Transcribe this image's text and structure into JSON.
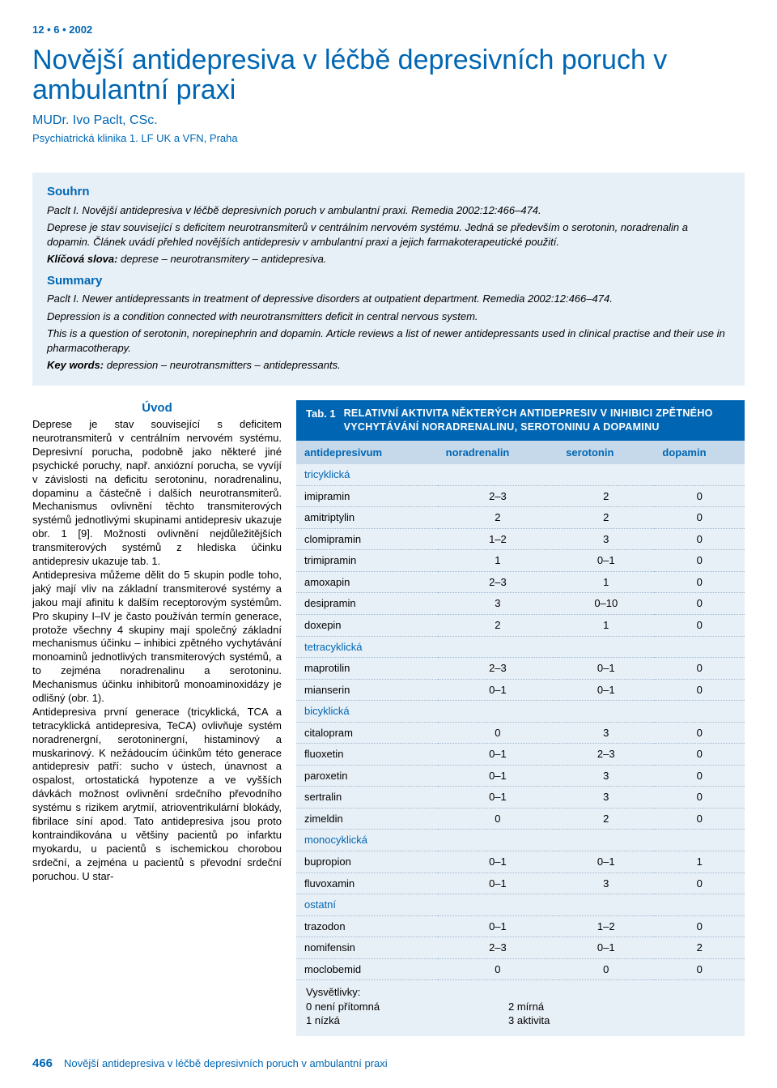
{
  "issue": "12 • 6 • 2002",
  "title": "Novější antidepresiva v léčbě depresivních poruch v ambulantní praxi",
  "author": "MUDr. Ivo Paclt, CSc.",
  "affiliation": "Psychiatrická klinika 1. LF UK a VFN, Praha",
  "souhrn": {
    "heading": "Souhrn",
    "p1": "Paclt I. Novější antidepresiva v léčbě depresivních poruch v ambulantní praxi. Remedia 2002:12:466–474.",
    "p2": "Deprese je stav související s deficitem neurotransmiterů v centrálním nervovém systému. Jedná se především o serotonin, noradrenalin a dopamin. Článek uvádí přehled novějších antidepresiv v ambulantní praxi a jejich farmakoterapeutické použití.",
    "kw_label": "Klíčová slova:",
    "kw": " deprese – neurotransmitery – antidepresiva."
  },
  "summary": {
    "heading": "Summary",
    "p1": "Paclt I. Newer antidepressants in treatment of depressive disorders at outpatient department. Remedia 2002:12:466–474.",
    "p2": "Depression is a condition connected with neurotransmitters deficit in central nervous system.",
    "p3": "This is a question of serotonin, norepinephrin and dopamin. Article reviews a list of newer antidepressants used in clinical practise and their use in pharmacotherapy.",
    "kw_label": "Key words:",
    "kw": " depression – neurotransmitters – antidepressants."
  },
  "uvod": {
    "heading": "Úvod",
    "text": "Deprese je stav související s deficitem neurotransmiterů v centrálním nervovém systému. Depresivní porucha, podobně jako některé jiné psychické poruchy, např. anxiózní porucha, se vyvíjí v závislosti na deficitu serotoninu, noradrenalinu, dopaminu a částečně i dalších neurotransmiterů. Mechanismus ovlivnění těchto transmiterových systémů jednotlivými skupinami antidepresiv ukazuje obr. 1 [9]. Možnosti ovlivnění nejdůležitějších transmiterových systémů z hlediska účinku antidepresiv ukazuje tab. 1.\nAntidepresiva můžeme dělit do 5 skupin podle toho, jaký mají vliv na základní transmiterové systémy a jakou mají afinitu k dalším receptorovým systémům. Pro skupiny I–IV je často používán termín generace, protože všechny 4 skupiny mají společný základní mechanismus účinku – inhibici zpětného vychytávání monoaminů jednotlivých transmiterových systémů, a to zejména noradrenalinu a serotoninu. Mechanismus účinku inhibitorů monoaminoxidázy je odlišný (obr. 1).\nAntidepresiva první generace (tricyklická, TCA a tetracyklická antidepresiva, TeCA) ovlivňuje systém noradrenergní, serotoninergní, histaminový a muskarinový. K nežádoucím účinkům této generace antidepresiv patří: sucho v ústech, únavnost a ospalost, ortostatická hypotenze a ve vyšších dávkách možnost ovlivnění srdečního převodního systému s rizikem arytmií, atrioventrikulární blokády, fibrilace síní apod. Tato antidepresiva jsou proto kontraindikována u většiny pacientů po infarktu myokardu, u pacientů s ischemickou chorobou srdeční, a zejména u pacientů s převodní srdeční poruchou. U star-"
  },
  "table": {
    "tab_label": "Tab. 1",
    "title": "RELATIVNÍ AKTIVITA NĚKTERÝCH ANTIDEPRESIV V INHIBICI ZPĚTNÉHO VYCHYTÁVÁNÍ NORADRENALINU, SEROTONINU A DOPAMINU",
    "columns": [
      "antidepresivum",
      "noradrenalin",
      "serotonin",
      "dopamin"
    ],
    "rows": [
      {
        "cat": "tricyklická"
      },
      {
        "name": "imipramin",
        "v": [
          "2–3",
          "2",
          "0"
        ]
      },
      {
        "name": "amitriptylin",
        "v": [
          "2",
          "2",
          "0"
        ]
      },
      {
        "name": "clomipramin",
        "v": [
          "1–2",
          "3",
          "0"
        ]
      },
      {
        "name": "trimipramin",
        "v": [
          "1",
          "0–1",
          "0"
        ]
      },
      {
        "name": "amoxapin",
        "v": [
          "2–3",
          "1",
          "0"
        ]
      },
      {
        "name": "desipramin",
        "v": [
          "3",
          "0–10",
          "0"
        ]
      },
      {
        "name": "doxepin",
        "v": [
          "2",
          "1",
          "0"
        ]
      },
      {
        "cat": "tetracyklická"
      },
      {
        "name": "maprotilin",
        "v": [
          "2–3",
          "0–1",
          "0"
        ]
      },
      {
        "name": "mianserin",
        "v": [
          "0–1",
          "0–1",
          "0"
        ]
      },
      {
        "cat": "bicyklická"
      },
      {
        "name": "citalopram",
        "v": [
          "0",
          "3",
          "0"
        ]
      },
      {
        "name": "fluoxetin",
        "v": [
          "0–1",
          "2–3",
          "0"
        ]
      },
      {
        "name": "paroxetin",
        "v": [
          "0–1",
          "3",
          "0"
        ]
      },
      {
        "name": "sertralin",
        "v": [
          "0–1",
          "3",
          "0"
        ]
      },
      {
        "name": "zimeldin",
        "v": [
          "0",
          "2",
          "0"
        ]
      },
      {
        "cat": "monocyklická"
      },
      {
        "name": "bupropion",
        "v": [
          "0–1",
          "0–1",
          "1"
        ]
      },
      {
        "name": "fluvoxamin",
        "v": [
          "0–1",
          "3",
          "0"
        ]
      },
      {
        "cat": "ostatní"
      },
      {
        "name": "trazodon",
        "v": [
          "0–1",
          "1–2",
          "0"
        ]
      },
      {
        "name": "nomifensin",
        "v": [
          "2–3",
          "0–1",
          "2"
        ]
      },
      {
        "name": "moclobemid",
        "v": [
          "0",
          "0",
          "0"
        ]
      }
    ],
    "legend": {
      "title": "Vysvětlivky:",
      "l0": "0    není přítomná",
      "l1": "1    nízká",
      "r2": "2    mírná",
      "r3": "3    aktivita"
    }
  },
  "footer": {
    "page": "466",
    "running": "Novější antidepresiva v léčbě depresivních poruch v ambulantní praxi"
  },
  "colors": {
    "brand": "#0066b3",
    "box_bg": "#e8f0f7",
    "th_bg": "#c5d9ea",
    "rule": "#9fb8ce"
  }
}
